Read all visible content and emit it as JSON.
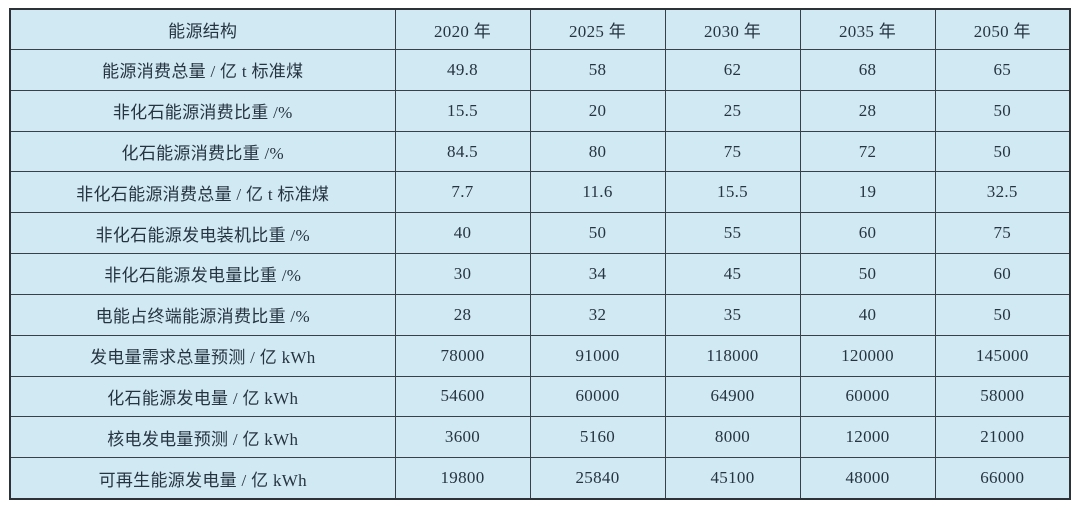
{
  "chart_data": {
    "type": "table",
    "columns": [
      "能源结构",
      "2020 年",
      "2025 年",
      "2030 年",
      "2035 年",
      "2050 年"
    ],
    "rows": [
      {
        "label": "能源消费总量 / 亿 t 标准煤",
        "values": [
          49.8,
          58,
          62,
          68,
          65
        ]
      },
      {
        "label": "非化石能源消费比重 /%",
        "values": [
          15.5,
          20,
          25,
          28,
          50
        ]
      },
      {
        "label": "化石能源消费比重 /%",
        "values": [
          84.5,
          80,
          75,
          72,
          50
        ]
      },
      {
        "label": "非化石能源消费总量 / 亿 t 标准煤",
        "values": [
          7.7,
          11.6,
          15.5,
          19,
          32.5
        ]
      },
      {
        "label": "非化石能源发电装机比重 /%",
        "values": [
          40,
          50,
          55,
          60,
          75
        ]
      },
      {
        "label": "非化石能源发电量比重 /%",
        "values": [
          30,
          34,
          45,
          50,
          60
        ]
      },
      {
        "label": "电能占终端能源消费比重 /%",
        "values": [
          28,
          32,
          35,
          40,
          50
        ]
      },
      {
        "label": "发电量需求总量预测 / 亿 kWh",
        "values": [
          78000,
          91000,
          118000,
          120000,
          145000
        ]
      },
      {
        "label": "化石能源发电量 / 亿 kWh",
        "values": [
          54600,
          60000,
          64900,
          60000,
          58000
        ]
      },
      {
        "label": "核电发电量预测 / 亿 kWh",
        "values": [
          3600,
          5160,
          8000,
          12000,
          21000
        ]
      },
      {
        "label": "可再生能源发电量 / 亿 kWh",
        "values": [
          19800,
          25840,
          45100,
          48000,
          66000
        ]
      }
    ]
  },
  "colors": {
    "cell_background": "#d0e9f2",
    "grid_border": "#3a4047",
    "outer_border": "#2c3238",
    "text": "#263442"
  }
}
